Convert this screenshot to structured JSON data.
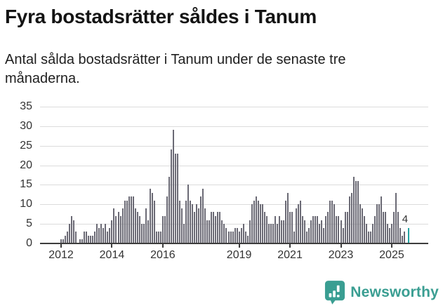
{
  "header": {
    "title": "Fyra bostadsrätter såldes i Tanum",
    "subtitle": "Antal sålda bostadsrätter i Tanum under de senaste tre månaderna."
  },
  "chart_data": {
    "type": "bar",
    "title": "Fyra bostadsrätter såldes i Tanum",
    "description": "Antal sålda bostadsrätter i Tanum under de senaste tre månaderna.",
    "x_start": "2012-01",
    "frequency": "monthly",
    "values": [
      1,
      1,
      2,
      3,
      5,
      7,
      6,
      3,
      0,
      1,
      1,
      3,
      3,
      2,
      2,
      2,
      3,
      5,
      4,
      5,
      4,
      5,
      3,
      4,
      6,
      9,
      7,
      8,
      7,
      9,
      11,
      11,
      12,
      12,
      12,
      9,
      8,
      7,
      5,
      5,
      9,
      6,
      14,
      13,
      11,
      3,
      3,
      3,
      7,
      7,
      12,
      17,
      24,
      29,
      23,
      23,
      11,
      9,
      5,
      11,
      15,
      11,
      10,
      8,
      10,
      9,
      12,
      14,
      9,
      6,
      6,
      8,
      8,
      7,
      8,
      8,
      6,
      5,
      4,
      3,
      3,
      3,
      4,
      4,
      3,
      4,
      5,
      3,
      2,
      6,
      10,
      11,
      12,
      11,
      10,
      10,
      8,
      7,
      5,
      5,
      5,
      7,
      5,
      7,
      6,
      6,
      11,
      13,
      8,
      8,
      3,
      9,
      10,
      11,
      7,
      6,
      3,
      4,
      6,
      7,
      7,
      7,
      5,
      6,
      4,
      7,
      8,
      11,
      11,
      10,
      7,
      7,
      6,
      4,
      8,
      8,
      12,
      13,
      17,
      16,
      16,
      10,
      9,
      7,
      5,
      3,
      3,
      5,
      7,
      10,
      10,
      12,
      8,
      8,
      5,
      4,
      5,
      8,
      13,
      8,
      4,
      2,
      3,
      0,
      4
    ],
    "highlight_index": 164,
    "annotation_label": "4",
    "ylim": [
      0,
      35
    ],
    "y_ticks": [
      "0",
      "5",
      "10",
      "15",
      "20",
      "25",
      "30",
      "35"
    ],
    "x_tick_labels": [
      "2012",
      "2014",
      "2016",
      "2019",
      "2021",
      "2023",
      "2025"
    ],
    "x_tick_month_indices": [
      0,
      24,
      48,
      84,
      108,
      132,
      156
    ],
    "grid": true,
    "legend": "none",
    "bar_color": "#6b6a75",
    "highlight_color": "#23a2a1",
    "grid_color": "#dcdcdc",
    "axis_color": "#3d3d3d"
  },
  "footer": {
    "brand": "Newsworthy",
    "brand_color": "#3a9e92",
    "logo_icon": "newsworthy-badge-bar-chart-icon"
  }
}
